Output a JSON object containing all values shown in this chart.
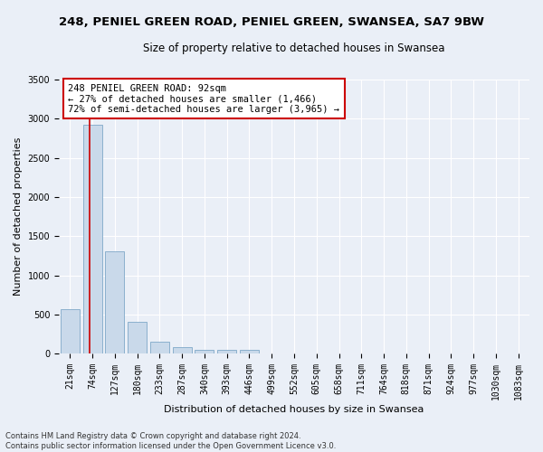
{
  "title_line1": "248, PENIEL GREEN ROAD, PENIEL GREEN, SWANSEA, SA7 9BW",
  "title_line2": "Size of property relative to detached houses in Swansea",
  "xlabel": "Distribution of detached houses by size in Swansea",
  "ylabel": "Number of detached properties",
  "categories": [
    "21sqm",
    "74sqm",
    "127sqm",
    "180sqm",
    "233sqm",
    "287sqm",
    "340sqm",
    "393sqm",
    "446sqm",
    "499sqm",
    "552sqm",
    "605sqm",
    "658sqm",
    "711sqm",
    "764sqm",
    "818sqm",
    "871sqm",
    "924sqm",
    "977sqm",
    "1030sqm",
    "1083sqm"
  ],
  "values": [
    570,
    2920,
    1310,
    410,
    155,
    80,
    48,
    42,
    42,
    0,
    0,
    0,
    0,
    0,
    0,
    0,
    0,
    0,
    0,
    0,
    0
  ],
  "bar_color": "#c9d9ea",
  "bar_edge_color": "#7fa8c8",
  "vline_color": "#cc0000",
  "vline_x": 0.88,
  "annotation_text": "248 PENIEL GREEN ROAD: 92sqm\n← 27% of detached houses are smaller (1,466)\n72% of semi-detached houses are larger (3,965) →",
  "annotation_box_color": "#ffffff",
  "annotation_box_edge": "#cc0000",
  "ylim": [
    0,
    3500
  ],
  "yticks": [
    0,
    500,
    1000,
    1500,
    2000,
    2500,
    3000,
    3500
  ],
  "footnote": "Contains HM Land Registry data © Crown copyright and database right 2024.\nContains public sector information licensed under the Open Government Licence v3.0.",
  "background_color": "#eaeff7",
  "grid_color": "#ffffff",
  "title_fontsize": 9.5,
  "subtitle_fontsize": 8.5,
  "axis_label_fontsize": 8,
  "tick_fontsize": 7,
  "annotation_fontsize": 7.5,
  "footnote_fontsize": 6
}
